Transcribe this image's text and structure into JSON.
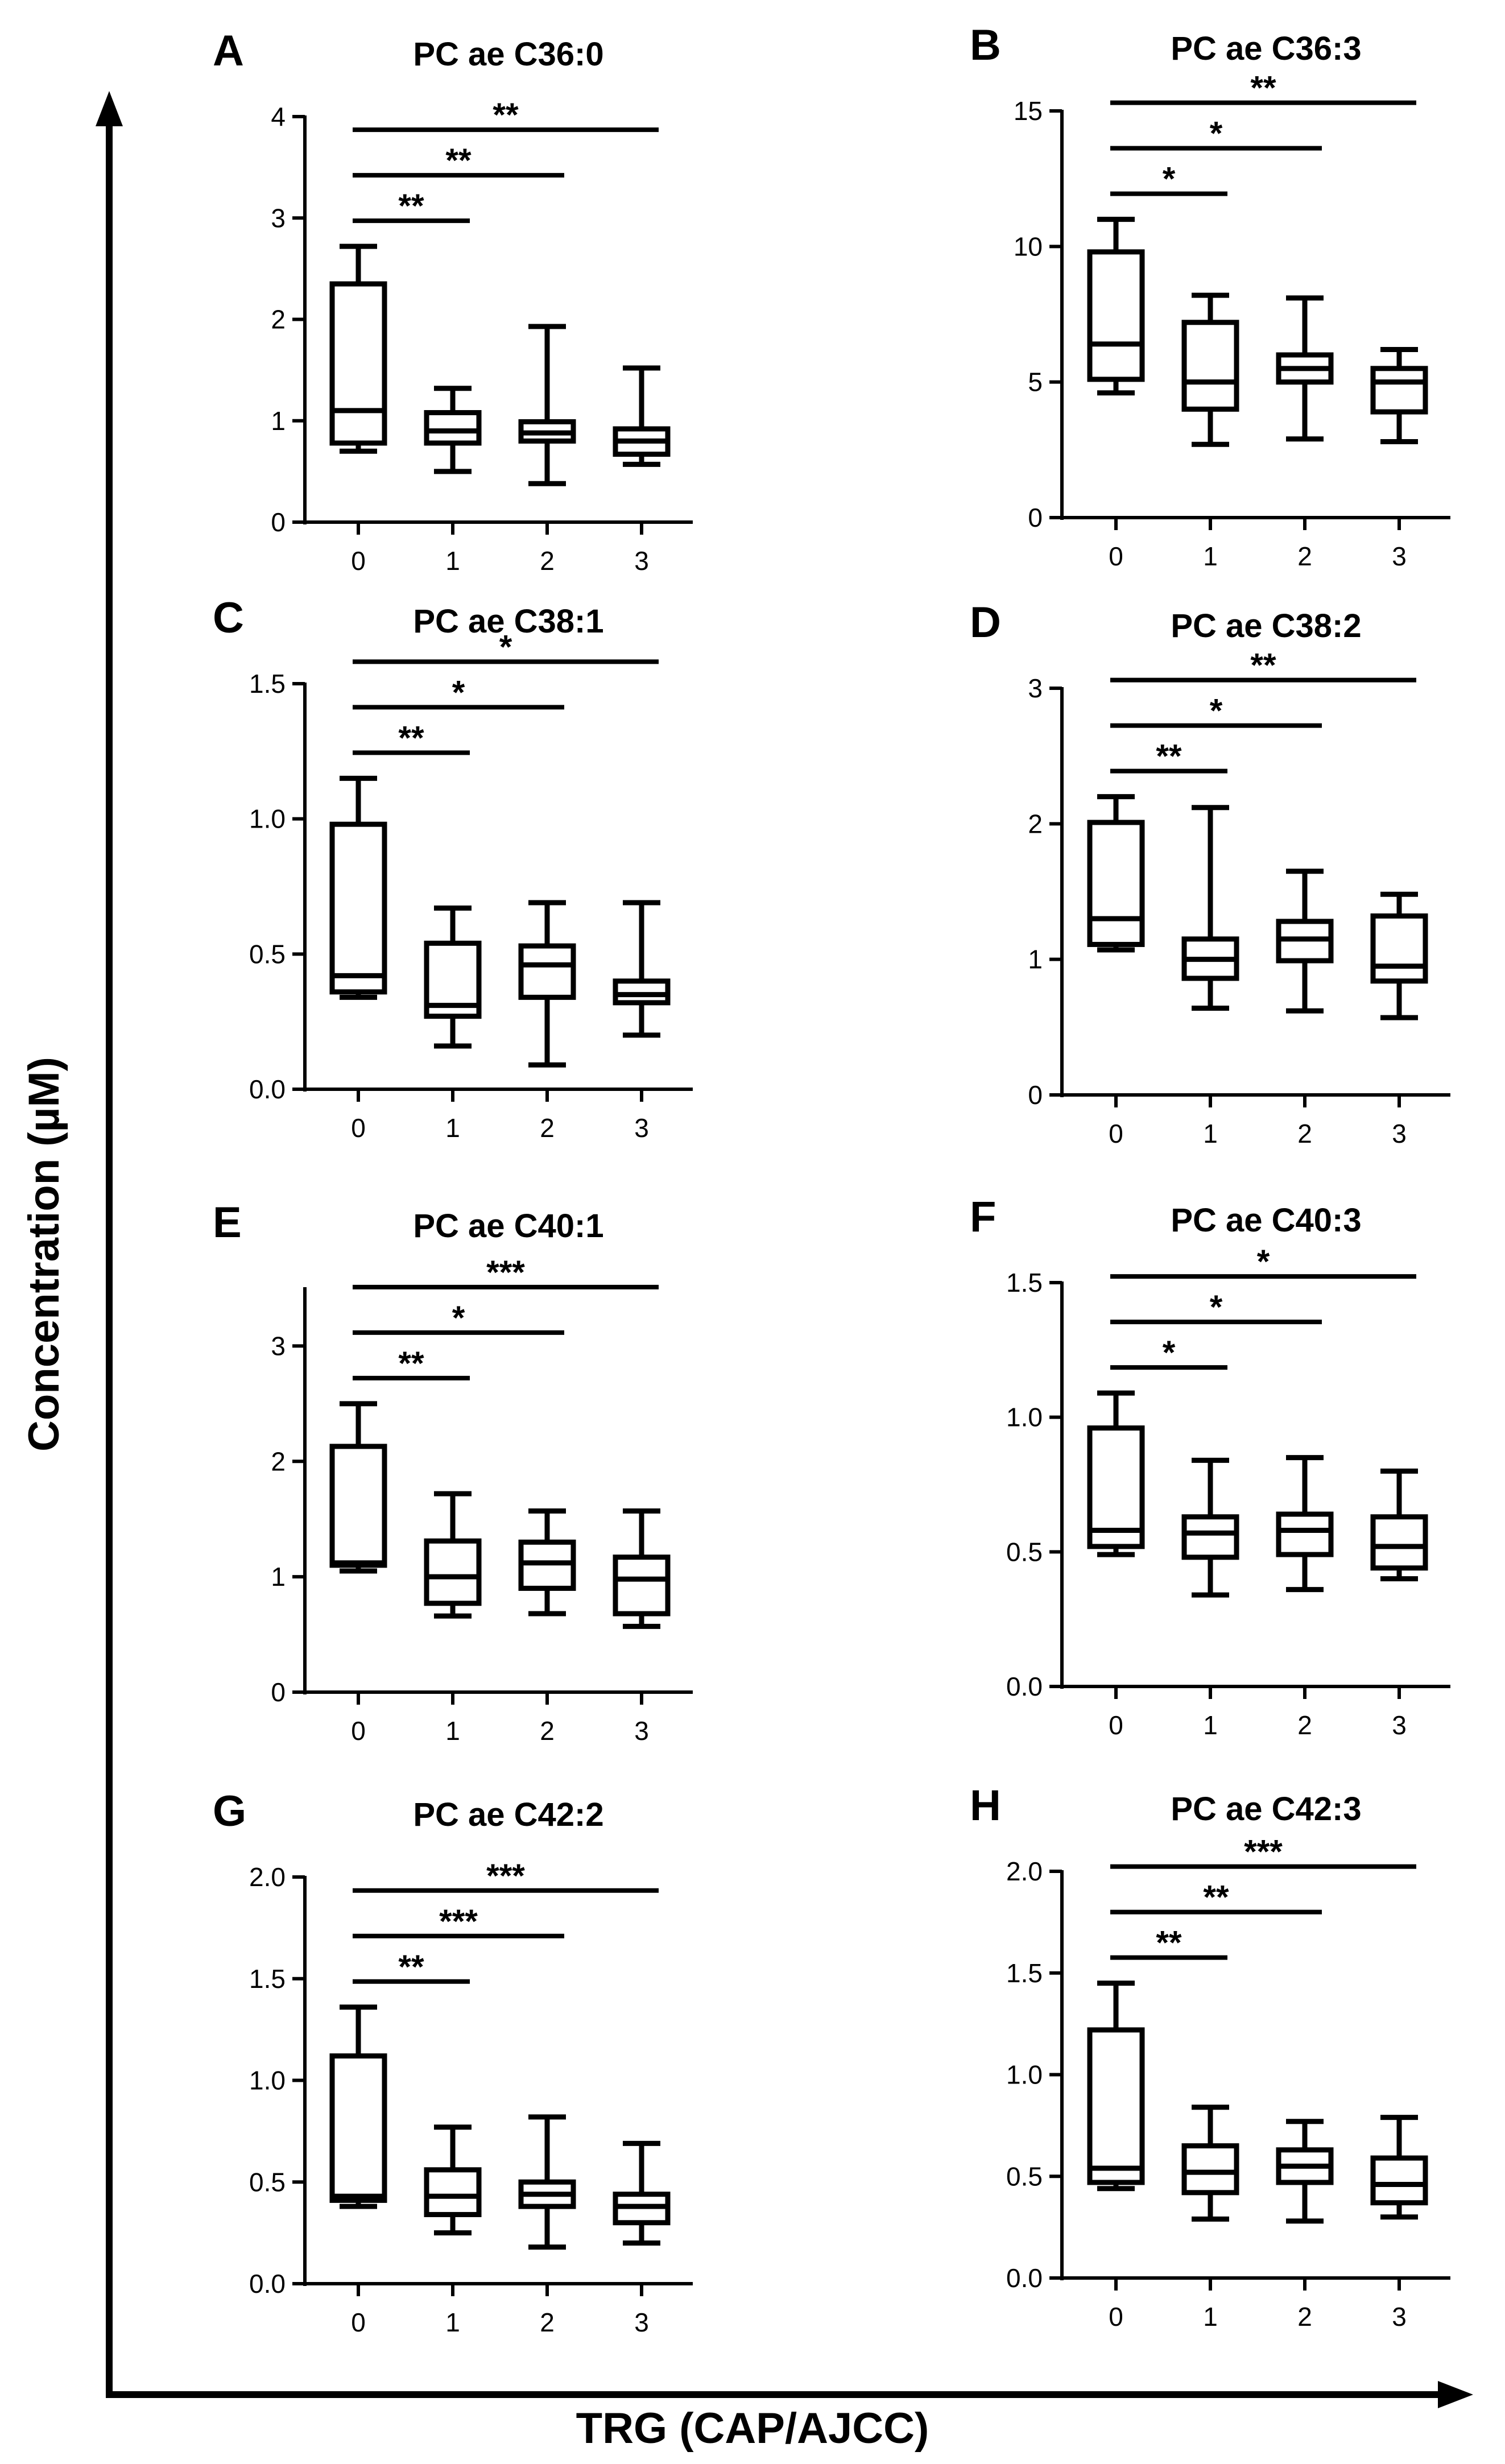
{
  "figure": {
    "ylabel": "Concentration (µM)",
    "xlabel": "TRG (CAP/AJCC)"
  },
  "chart_data": [
    {
      "type": "box",
      "panel": "A",
      "title": "PC ae C36:0",
      "categories": [
        "0",
        "1",
        "2",
        "3"
      ],
      "ylim": [
        0,
        4
      ],
      "yticks": [
        0,
        1,
        2,
        3,
        4
      ],
      "ytick_labels": [
        "0",
        "1",
        "2",
        "3",
        "4"
      ],
      "boxes": [
        {
          "min": 0.7,
          "q1": 0.78,
          "median": 1.1,
          "q3": 2.35,
          "max": 2.72
        },
        {
          "min": 0.5,
          "q1": 0.78,
          "median": 0.9,
          "q3": 1.08,
          "max": 1.32
        },
        {
          "min": 0.38,
          "q1": 0.8,
          "median": 0.88,
          "q3": 0.99,
          "max": 1.93
        },
        {
          "min": 0.57,
          "q1": 0.67,
          "median": 0.8,
          "q3": 0.92,
          "max": 1.52
        }
      ],
      "significance": [
        {
          "from": "0",
          "to": "1",
          "label": "**"
        },
        {
          "from": "0",
          "to": "2",
          "label": "**"
        },
        {
          "from": "0",
          "to": "3",
          "label": "**"
        }
      ]
    },
    {
      "type": "box",
      "panel": "B",
      "title": "PC ae C36:3",
      "categories": [
        "0",
        "1",
        "2",
        "3"
      ],
      "ylim": [
        0,
        15
      ],
      "yticks": [
        0,
        5,
        10,
        15
      ],
      "ytick_labels": [
        "0",
        "5",
        "10",
        "15"
      ],
      "boxes": [
        {
          "min": 4.6,
          "q1": 5.1,
          "median": 6.4,
          "q3": 9.8,
          "max": 11.0
        },
        {
          "min": 2.7,
          "q1": 4.0,
          "median": 5.0,
          "q3": 7.2,
          "max": 8.2
        },
        {
          "min": 2.9,
          "q1": 5.0,
          "median": 5.5,
          "q3": 6.0,
          "max": 8.1
        },
        {
          "min": 2.8,
          "q1": 3.9,
          "median": 5.0,
          "q3": 5.5,
          "max": 6.2
        }
      ],
      "significance": [
        {
          "from": "0",
          "to": "1",
          "label": "*"
        },
        {
          "from": "0",
          "to": "2",
          "label": "*"
        },
        {
          "from": "0",
          "to": "3",
          "label": "**"
        }
      ]
    },
    {
      "type": "box",
      "panel": "C",
      "title": "PC ae C38:1",
      "categories": [
        "0",
        "1",
        "2",
        "3"
      ],
      "ylim": [
        0,
        1.5
      ],
      "yticks": [
        0,
        0.5,
        1.0,
        1.5
      ],
      "ytick_labels": [
        "0.0",
        "0.5",
        "1.0",
        "1.5"
      ],
      "boxes": [
        {
          "min": 0.34,
          "q1": 0.36,
          "median": 0.42,
          "q3": 0.98,
          "max": 1.15
        },
        {
          "min": 0.16,
          "q1": 0.27,
          "median": 0.31,
          "q3": 0.54,
          "max": 0.67
        },
        {
          "min": 0.09,
          "q1": 0.34,
          "median": 0.46,
          "q3": 0.53,
          "max": 0.69
        },
        {
          "min": 0.2,
          "q1": 0.32,
          "median": 0.35,
          "q3": 0.4,
          "max": 0.69
        }
      ],
      "significance": [
        {
          "from": "0",
          "to": "1",
          "label": "**"
        },
        {
          "from": "0",
          "to": "2",
          "label": "*"
        },
        {
          "from": "0",
          "to": "3",
          "label": "*"
        }
      ]
    },
    {
      "type": "box",
      "panel": "D",
      "title": "PC ae C38:2",
      "categories": [
        "0",
        "1",
        "2",
        "3"
      ],
      "ylim": [
        0,
        3
      ],
      "yticks": [
        0,
        1,
        2,
        3
      ],
      "ytick_labels": [
        "0",
        "1",
        "2",
        "3"
      ],
      "boxes": [
        {
          "min": 1.07,
          "q1": 1.11,
          "median": 1.3,
          "q3": 2.01,
          "max": 2.2
        },
        {
          "min": 0.64,
          "q1": 0.86,
          "median": 1.0,
          "q3": 1.15,
          "max": 2.12
        },
        {
          "min": 0.62,
          "q1": 0.99,
          "median": 1.15,
          "q3": 1.28,
          "max": 1.65
        },
        {
          "min": 0.57,
          "q1": 0.84,
          "median": 0.95,
          "q3": 1.32,
          "max": 1.48
        }
      ],
      "significance": [
        {
          "from": "0",
          "to": "1",
          "label": "**"
        },
        {
          "from": "0",
          "to": "2",
          "label": "*"
        },
        {
          "from": "0",
          "to": "3",
          "label": "**"
        }
      ]
    },
    {
      "type": "box",
      "panel": "E",
      "title": "PC ae C40:1",
      "categories": [
        "0",
        "1",
        "2",
        "3"
      ],
      "ylim": [
        0,
        3.5
      ],
      "yticks": [
        0,
        1,
        2,
        3
      ],
      "ytick_labels": [
        "0",
        "1",
        "2",
        "3"
      ],
      "boxes": [
        {
          "min": 1.05,
          "q1": 1.1,
          "median": 1.12,
          "q3": 2.13,
          "max": 2.5
        },
        {
          "min": 0.66,
          "q1": 0.77,
          "median": 1.0,
          "q3": 1.31,
          "max": 1.72
        },
        {
          "min": 0.68,
          "q1": 0.9,
          "median": 1.12,
          "q3": 1.3,
          "max": 1.57
        },
        {
          "min": 0.57,
          "q1": 0.68,
          "median": 0.98,
          "q3": 1.17,
          "max": 1.57
        }
      ],
      "significance": [
        {
          "from": "0",
          "to": "1",
          "label": "**"
        },
        {
          "from": "0",
          "to": "2",
          "label": "*"
        },
        {
          "from": "0",
          "to": "3",
          "label": "***"
        }
      ]
    },
    {
      "type": "box",
      "panel": "F",
      "title": "PC ae C40:3",
      "categories": [
        "0",
        "1",
        "2",
        "3"
      ],
      "ylim": [
        0,
        1.5
      ],
      "yticks": [
        0,
        0.5,
        1.0,
        1.5
      ],
      "ytick_labels": [
        "0.0",
        "0.5",
        "1.0",
        "1.5"
      ],
      "boxes": [
        {
          "min": 0.49,
          "q1": 0.52,
          "median": 0.58,
          "q3": 0.96,
          "max": 1.09
        },
        {
          "min": 0.34,
          "q1": 0.48,
          "median": 0.57,
          "q3": 0.63,
          "max": 0.84
        },
        {
          "min": 0.36,
          "q1": 0.49,
          "median": 0.58,
          "q3": 0.64,
          "max": 0.85
        },
        {
          "min": 0.4,
          "q1": 0.44,
          "median": 0.52,
          "q3": 0.63,
          "max": 0.8
        }
      ],
      "significance": [
        {
          "from": "0",
          "to": "1",
          "label": "*"
        },
        {
          "from": "0",
          "to": "2",
          "label": "*"
        },
        {
          "from": "0",
          "to": "3",
          "label": "*"
        }
      ]
    },
    {
      "type": "box",
      "panel": "G",
      "title": "PC ae C42:2",
      "categories": [
        "0",
        "1",
        "2",
        "3"
      ],
      "ylim": [
        0,
        2.0
      ],
      "yticks": [
        0,
        0.5,
        1.0,
        1.5,
        2.0
      ],
      "ytick_labels": [
        "0.0",
        "0.5",
        "1.0",
        "1.5",
        "2.0"
      ],
      "boxes": [
        {
          "min": 0.38,
          "q1": 0.41,
          "median": 0.43,
          "q3": 1.12,
          "max": 1.36
        },
        {
          "min": 0.25,
          "q1": 0.34,
          "median": 0.43,
          "q3": 0.56,
          "max": 0.77
        },
        {
          "min": 0.18,
          "q1": 0.38,
          "median": 0.44,
          "q3": 0.5,
          "max": 0.82
        },
        {
          "min": 0.2,
          "q1": 0.3,
          "median": 0.38,
          "q3": 0.44,
          "max": 0.69
        }
      ],
      "significance": [
        {
          "from": "0",
          "to": "1",
          "label": "**"
        },
        {
          "from": "0",
          "to": "2",
          "label": "***"
        },
        {
          "from": "0",
          "to": "3",
          "label": "***"
        }
      ]
    },
    {
      "type": "box",
      "panel": "H",
      "title": "PC ae C42:3",
      "categories": [
        "0",
        "1",
        "2",
        "3"
      ],
      "ylim": [
        0,
        2.0
      ],
      "yticks": [
        0,
        0.5,
        1.0,
        1.5,
        2.0
      ],
      "ytick_labels": [
        "0.0",
        "0.5",
        "1.0",
        "1.5",
        "2.0"
      ],
      "boxes": [
        {
          "min": 0.44,
          "q1": 0.47,
          "median": 0.54,
          "q3": 1.22,
          "max": 1.45
        },
        {
          "min": 0.29,
          "q1": 0.42,
          "median": 0.52,
          "q3": 0.65,
          "max": 0.84
        },
        {
          "min": 0.28,
          "q1": 0.47,
          "median": 0.55,
          "q3": 0.63,
          "max": 0.77
        },
        {
          "min": 0.3,
          "q1": 0.37,
          "median": 0.46,
          "q3": 0.59,
          "max": 0.79
        }
      ],
      "significance": [
        {
          "from": "0",
          "to": "1",
          "label": "**"
        },
        {
          "from": "0",
          "to": "2",
          "label": "**"
        },
        {
          "from": "0",
          "to": "3",
          "label": "***"
        }
      ]
    }
  ]
}
